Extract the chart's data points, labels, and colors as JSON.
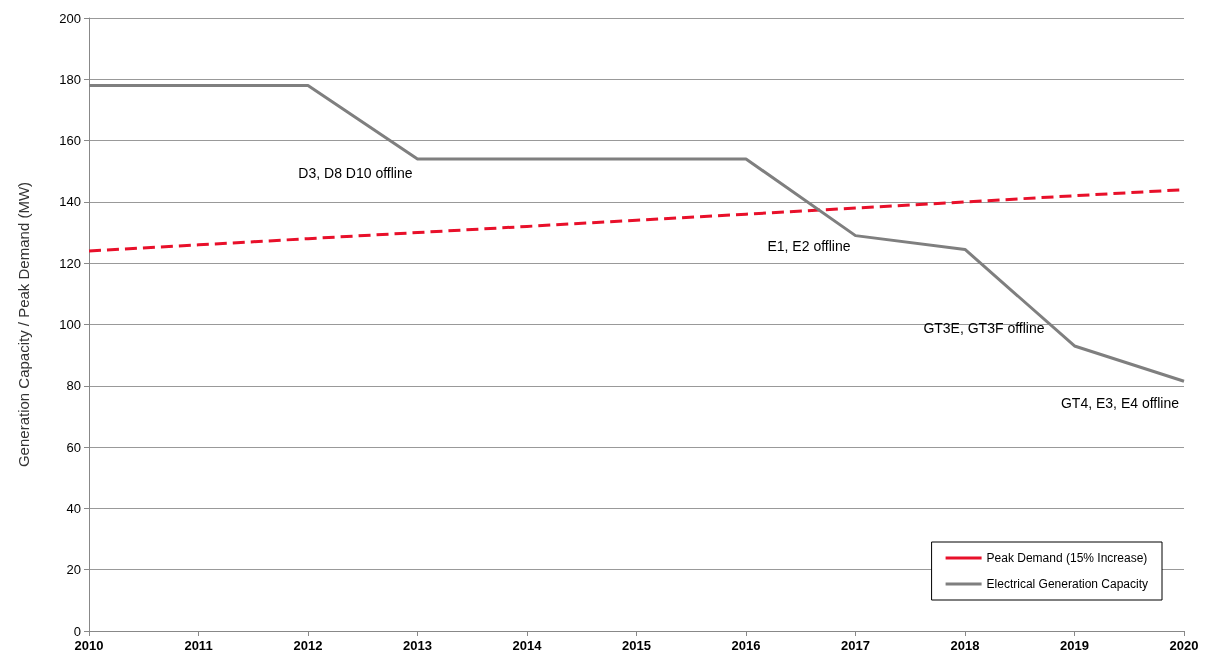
{
  "chart_data": {
    "type": "line",
    "ylabel": "Generation Capacity / Peak Demand (MW)",
    "x": [
      2010,
      2011,
      2012,
      2013,
      2014,
      2015,
      2016,
      2017,
      2018,
      2019,
      2020
    ],
    "series": [
      {
        "name": "Peak Demand (15% Increase)",
        "color": "#e8102a",
        "line_style": "dashed",
        "values": [
          124,
          126,
          128,
          130,
          132,
          134,
          136,
          138,
          140,
          142,
          144
        ]
      },
      {
        "name": "Electrical Generation Capacity",
        "color": "#7f7f7f",
        "line_style": "solid",
        "values": [
          178,
          178,
          178,
          154,
          154,
          154,
          154,
          129,
          124.5,
          93,
          81.5
        ]
      }
    ],
    "xlim": [
      2010,
      2020
    ],
    "xticks": [
      2010,
      2011,
      2012,
      2013,
      2014,
      2015,
      2016,
      2017,
      2018,
      2019,
      2020
    ],
    "ylim": [
      0,
      200
    ],
    "yticks": [
      0,
      20,
      40,
      60,
      80,
      100,
      120,
      140,
      160,
      180,
      200
    ],
    "grid": "y",
    "legend": "bottom right",
    "marker": "none",
    "annotations": [
      {
        "text": "D3, D8 D10 offline",
        "x": 2013,
        "y": 154
      },
      {
        "text": "E1, E2 offline",
        "x": 2017,
        "y": 129
      },
      {
        "text": "GT3E, GT3F offline",
        "x": 2019,
        "y": 93
      },
      {
        "text": "GT4, E3, E4 offline",
        "x": 2020,
        "y": 81.5
      }
    ]
  }
}
